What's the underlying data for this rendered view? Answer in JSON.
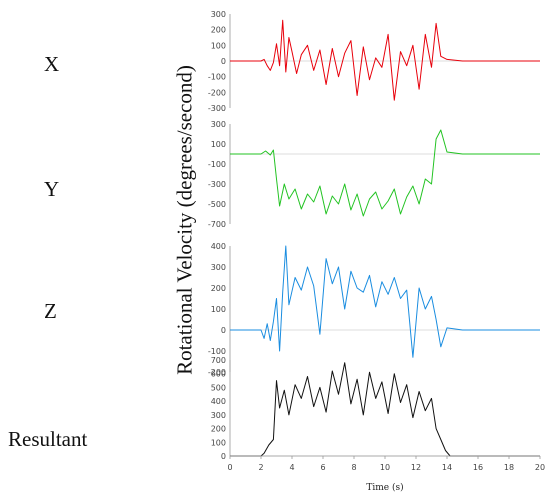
{
  "row_labels": [
    "X",
    "Y",
    "Z",
    "Resultant"
  ],
  "ylabel": "Rotational Velocity (degrees/second)",
  "chart_data": {
    "type": "line",
    "xlabel": "Time (s)",
    "xlim": [
      0,
      20
    ],
    "xticks": [
      0,
      2,
      4,
      6,
      8,
      10,
      12,
      14,
      16,
      18,
      20
    ],
    "grid": false,
    "panels": [
      {
        "name": "X",
        "color": "#e8000b",
        "ylim": [
          -300,
          300
        ],
        "yticks": [
          300,
          200,
          100,
          0,
          -100,
          -200,
          -300
        ],
        "x": [
          0,
          1,
          2,
          2.2,
          2.4,
          2.6,
          2.8,
          3.0,
          3.2,
          3.4,
          3.6,
          3.8,
          4.0,
          4.3,
          4.6,
          5.0,
          5.4,
          5.8,
          6.2,
          6.6,
          7.0,
          7.4,
          7.8,
          8.2,
          8.6,
          9.0,
          9.4,
          9.8,
          10.2,
          10.6,
          11.0,
          11.4,
          11.8,
          12.2,
          12.6,
          13.0,
          13.3,
          13.6,
          14.0,
          15,
          16,
          17,
          18,
          19,
          20
        ],
        "y": [
          0,
          0,
          0,
          10,
          -30,
          -60,
          -10,
          110,
          -30,
          260,
          -70,
          150,
          60,
          -80,
          40,
          100,
          -60,
          70,
          -150,
          80,
          -100,
          50,
          130,
          -220,
          90,
          -120,
          20,
          -40,
          170,
          -250,
          60,
          -30,
          100,
          -180,
          170,
          -40,
          240,
          30,
          10,
          0,
          0,
          0,
          0,
          0,
          0
        ]
      },
      {
        "name": "Y",
        "color": "#22c322",
        "ylim": [
          -700,
          300
        ],
        "yticks": [
          300,
          100,
          -100,
          -300,
          -500,
          -700
        ],
        "x": [
          0,
          1,
          2,
          2.3,
          2.6,
          2.8,
          3.0,
          3.2,
          3.5,
          3.8,
          4.2,
          4.6,
          5.0,
          5.4,
          5.8,
          6.2,
          6.6,
          7.0,
          7.4,
          7.8,
          8.2,
          8.6,
          9.0,
          9.4,
          9.8,
          10.2,
          10.6,
          11.0,
          11.4,
          11.8,
          12.2,
          12.6,
          13.0,
          13.3,
          13.6,
          14.0,
          15,
          16,
          17,
          18,
          19,
          20
        ],
        "y": [
          0,
          0,
          0,
          30,
          -10,
          40,
          -250,
          -520,
          -300,
          -450,
          -350,
          -550,
          -400,
          -480,
          -320,
          -600,
          -420,
          -500,
          -300,
          -560,
          -400,
          -620,
          -450,
          -380,
          -550,
          -470,
          -350,
          -600,
          -430,
          -320,
          -500,
          -250,
          -300,
          150,
          240,
          20,
          0,
          0,
          0,
          0,
          0,
          0
        ]
      },
      {
        "name": "Z",
        "color": "#1a8de0",
        "ylim": [
          -200,
          400
        ],
        "yticks": [
          400,
          300,
          200,
          100,
          0,
          -100,
          -200
        ],
        "x": [
          0,
          1,
          2,
          2.2,
          2.4,
          2.6,
          2.8,
          3.0,
          3.2,
          3.4,
          3.6,
          3.8,
          4.2,
          4.6,
          5.0,
          5.4,
          5.8,
          6.2,
          6.6,
          7.0,
          7.4,
          7.8,
          8.2,
          8.6,
          9.0,
          9.4,
          9.8,
          10.2,
          10.6,
          11.0,
          11.4,
          11.8,
          12.2,
          12.6,
          13.0,
          13.3,
          13.6,
          14.0,
          15,
          16,
          17,
          18,
          19,
          20
        ],
        "y": [
          0,
          0,
          0,
          -40,
          30,
          -50,
          40,
          150,
          -100,
          180,
          400,
          120,
          250,
          190,
          300,
          210,
          -20,
          340,
          220,
          300,
          100,
          280,
          200,
          180,
          260,
          110,
          230,
          170,
          250,
          150,
          190,
          -130,
          200,
          100,
          160,
          50,
          -80,
          10,
          0,
          0,
          0,
          0,
          0,
          0
        ]
      },
      {
        "name": "Resultant",
        "color": "#111111",
        "ylim": [
          0,
          700
        ],
        "yticks": [
          700,
          600,
          500,
          400,
          300,
          200,
          100,
          0
        ],
        "x": [
          0,
          1,
          2,
          2.2,
          2.5,
          2.8,
          3.0,
          3.2,
          3.5,
          3.8,
          4.2,
          4.6,
          5.0,
          5.4,
          5.8,
          6.2,
          6.6,
          7.0,
          7.4,
          7.8,
          8.2,
          8.6,
          9.0,
          9.4,
          9.8,
          10.2,
          10.6,
          11.0,
          11.4,
          11.8,
          12.2,
          12.6,
          13.0,
          13.3,
          13.6,
          13.9,
          14.2,
          15,
          16,
          17,
          18,
          19,
          20
        ],
        "y": [
          0,
          0,
          0,
          20,
          80,
          120,
          550,
          350,
          480,
          300,
          520,
          420,
          580,
          360,
          500,
          320,
          620,
          450,
          680,
          380,
          560,
          300,
          610,
          420,
          540,
          310,
          600,
          390,
          520,
          280,
          470,
          330,
          420,
          200,
          120,
          40,
          0,
          0,
          0,
          0,
          0,
          0,
          0
        ]
      }
    ]
  }
}
